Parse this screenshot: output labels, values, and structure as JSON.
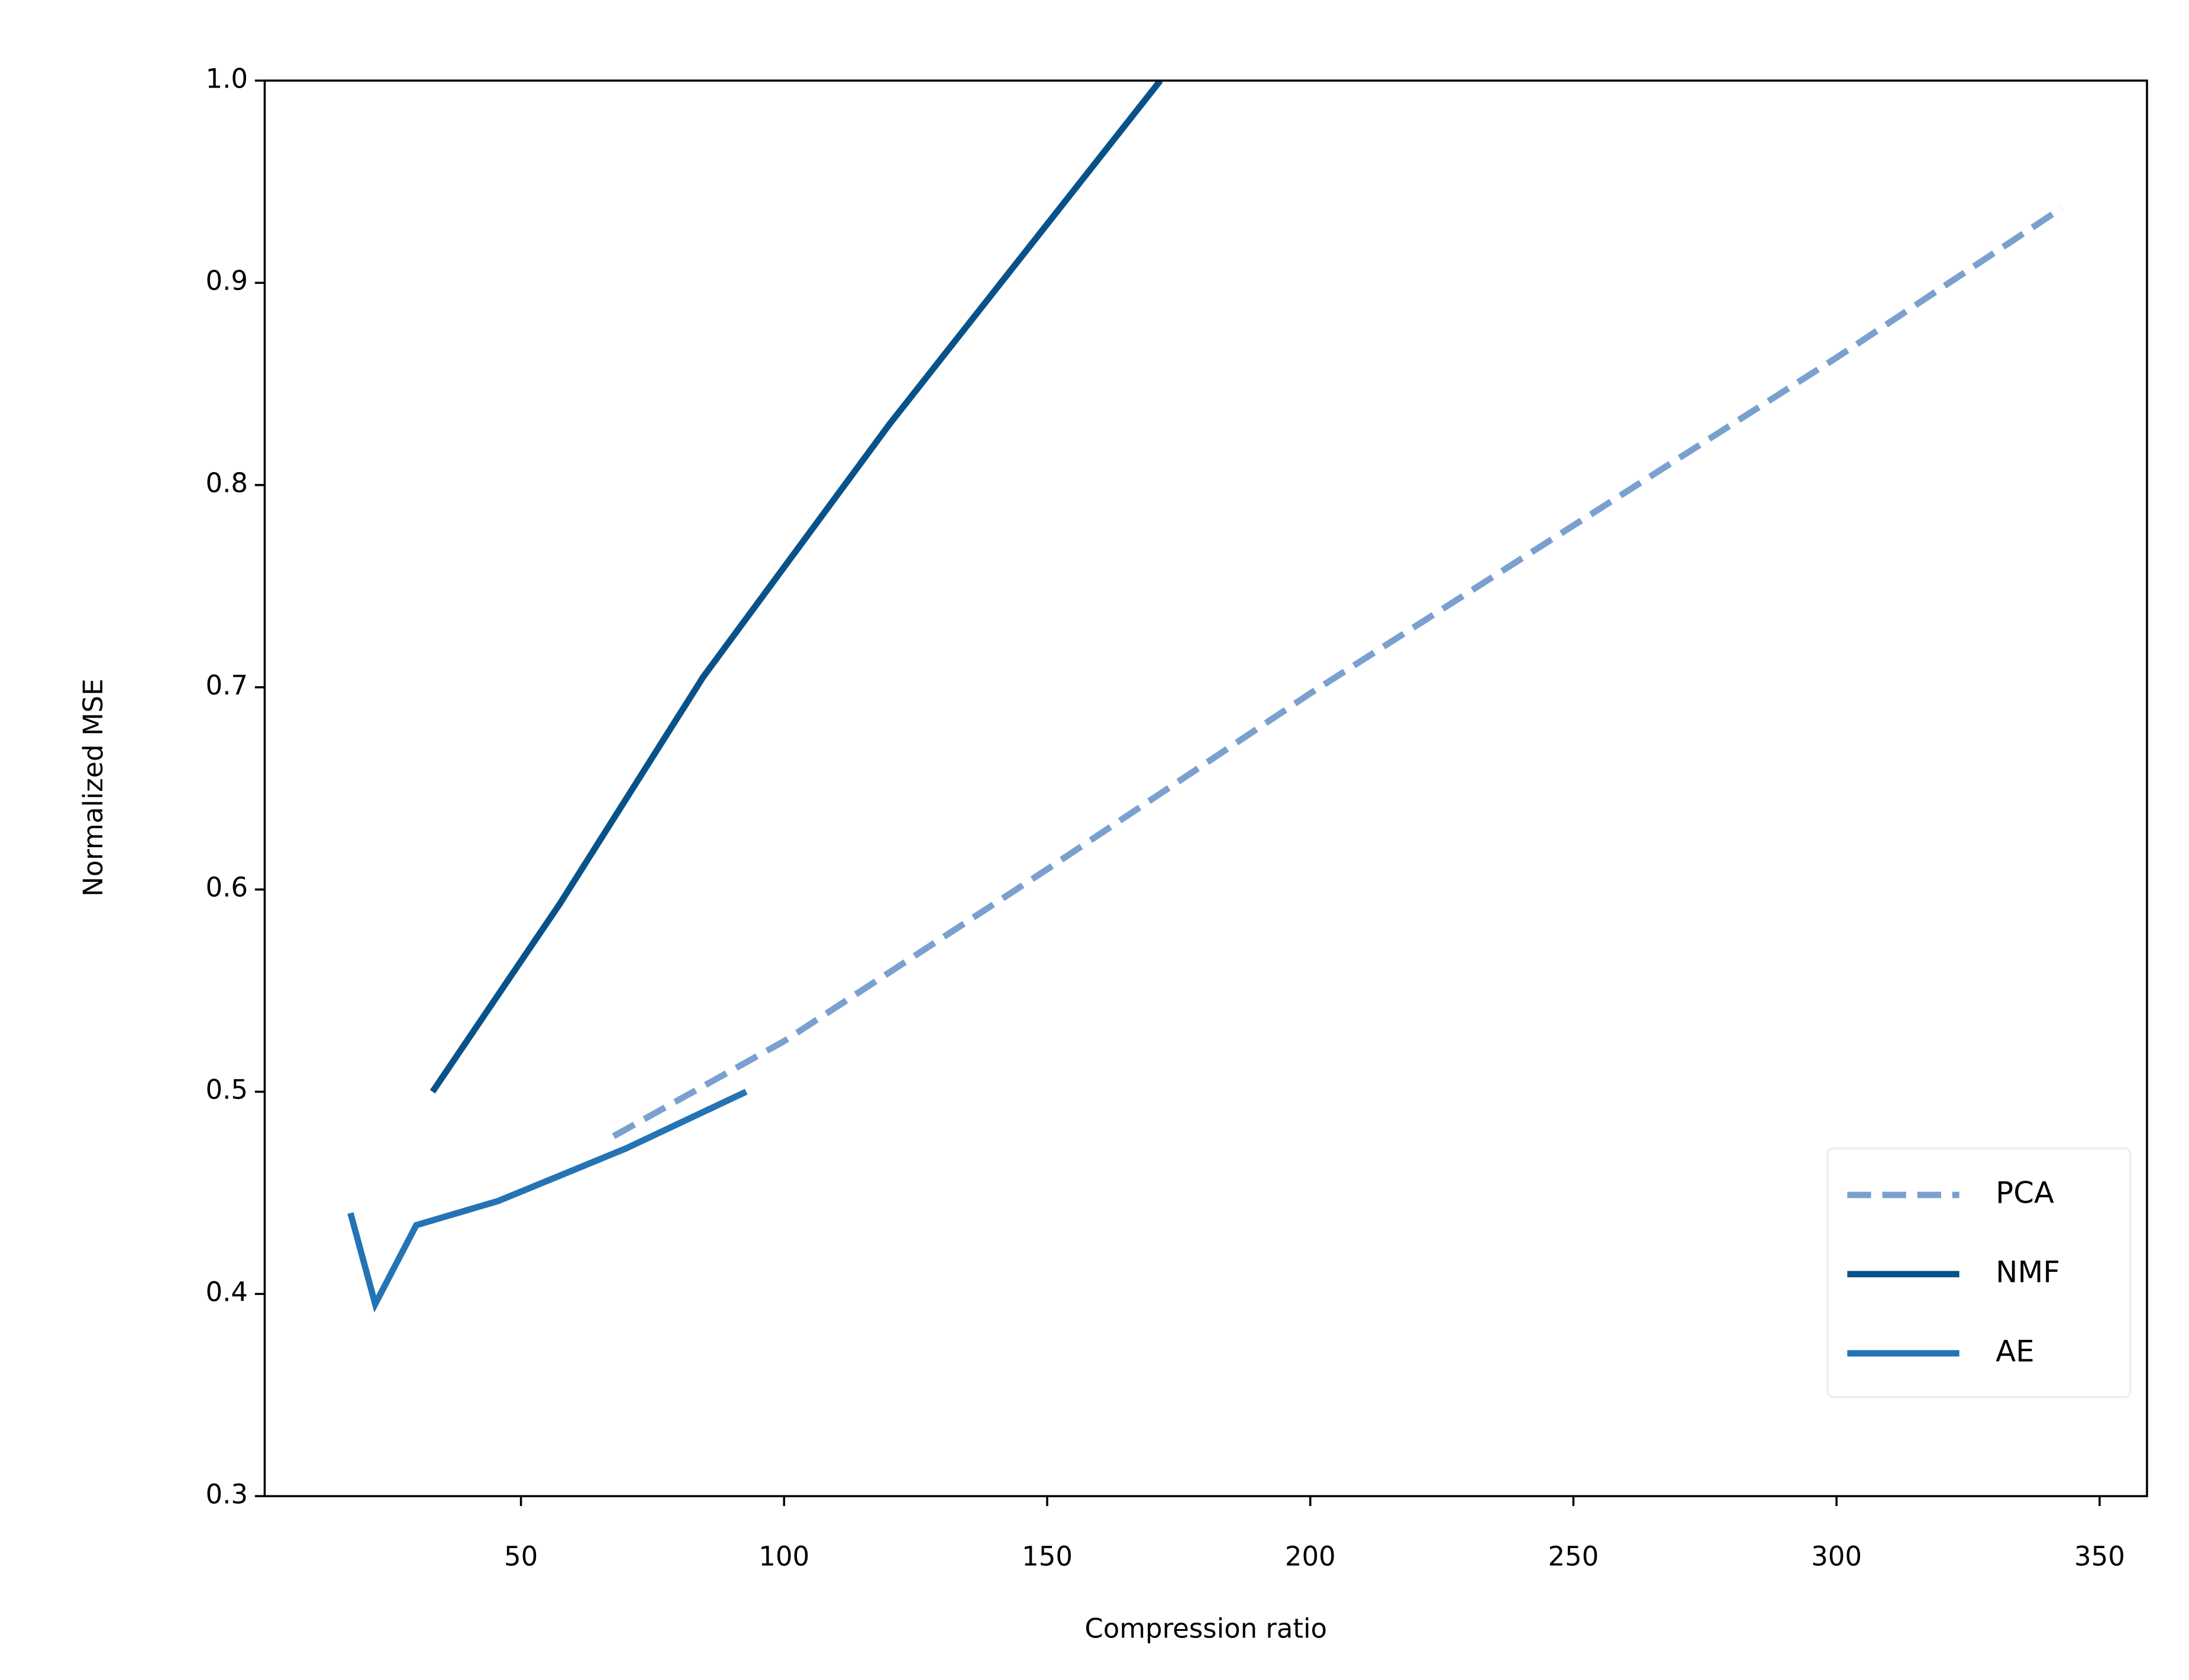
{
  "chart_data": {
    "type": "line",
    "xlabel": "Compression ratio",
    "ylabel": "Normalized MSE",
    "xlim": [
      1.3,
      359
    ],
    "ylim": [
      0.3,
      1.0
    ],
    "xticks": [
      50,
      100,
      150,
      200,
      250,
      300,
      350
    ],
    "yticks": [
      0.3,
      0.4,
      0.5,
      0.6,
      0.7,
      0.8,
      0.9,
      {
        "value": 1,
        "label": "1.0"
      }
    ],
    "legend": "lower right",
    "series": [
      {
        "name": "PCA",
        "color": "#7aa0cf",
        "dashed": true,
        "x": [
          67.6,
          100,
          150,
          200,
          250,
          300,
          342.8
        ],
        "values": [
          0.478,
          0.525,
          0.61,
          0.697,
          0.78,
          0.863,
          0.937
        ]
      },
      {
        "name": "NMF",
        "color": "#08528a",
        "dashed": false,
        "x": [
          33.2,
          42.3,
          57.4,
          84.6,
          120,
          171.5
        ],
        "values": [
          0.5,
          0.535,
          0.593,
          0.705,
          0.83,
          1.0
        ]
      },
      {
        "name": "AE",
        "color": "#2474b5",
        "dashed": false,
        "x": [
          17.6,
          22.3,
          30.1,
          45.7,
          70,
          92.8
        ],
        "values": [
          0.44,
          0.395,
          0.434,
          0.446,
          0.472,
          0.5
        ]
      }
    ]
  }
}
